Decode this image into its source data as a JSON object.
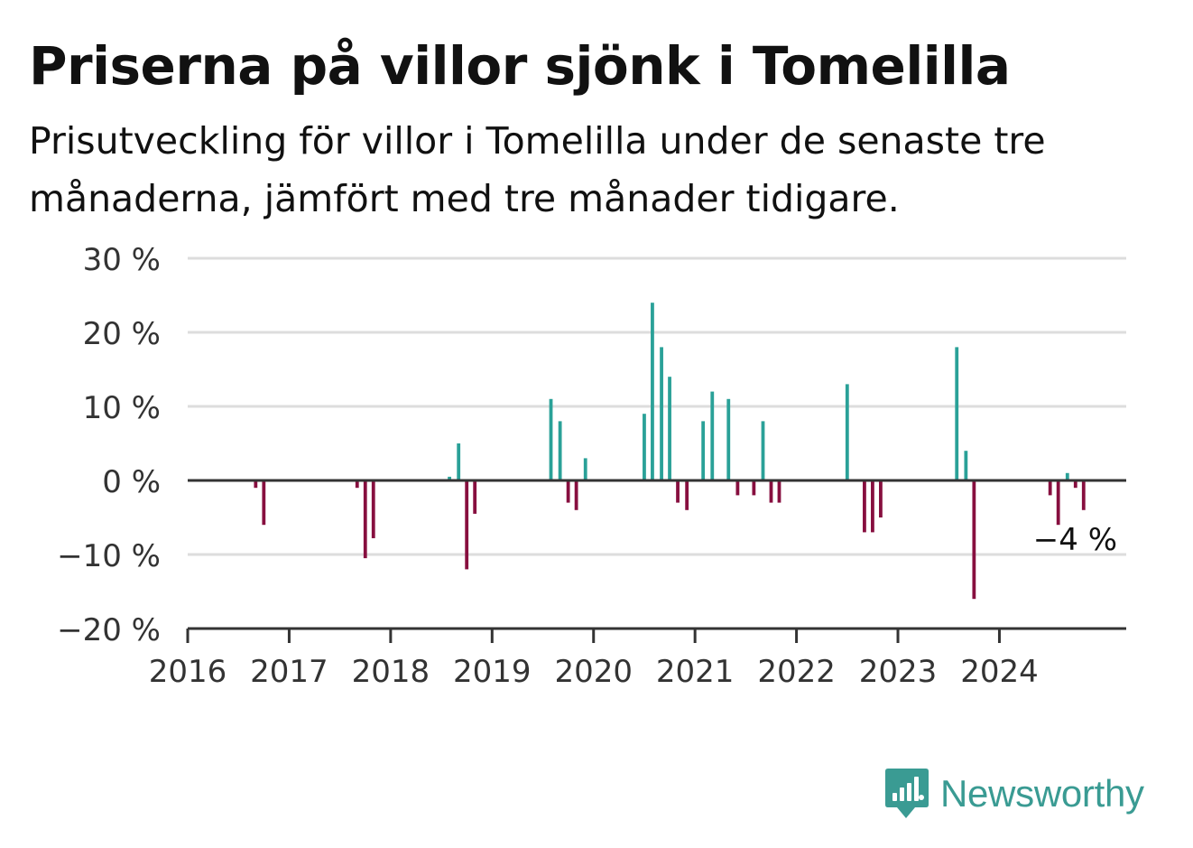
{
  "title": "Priserna på villor sjönk i Tomelilla",
  "subtitle": "Prisutveckling för villor i Tomelilla under de senaste tre månaderna, jämfört med tre månader tidigare.",
  "brand": "Newsworthy",
  "colors": {
    "positive": "#2aa198",
    "negative": "#870f3f",
    "grid": "#dddddd",
    "axis": "#333333"
  },
  "chart_data": {
    "type": "bar",
    "title": "Priserna på villor sjönk i Tomelilla",
    "xlabel": "",
    "ylabel": "",
    "ylim": [
      -20,
      30
    ],
    "xlim": [
      2016,
      2025.25
    ],
    "y_ticks": [
      30,
      20,
      10,
      0,
      -10,
      -20
    ],
    "y_tick_labels": [
      "30 %",
      "20 %",
      "10 %",
      "0 %",
      "−10 %",
      "−20 %"
    ],
    "x_tick_labels": [
      "2016",
      "2017",
      "2018",
      "2019",
      "2020",
      "2021",
      "2022",
      "2023",
      "2024"
    ],
    "grid": true,
    "annotation": "−4 %",
    "bars": [
      {
        "x": 2016.67,
        "y": -1
      },
      {
        "x": 2016.75,
        "y": -6
      },
      {
        "x": 2017.67,
        "y": -1
      },
      {
        "x": 2017.75,
        "y": -10.5
      },
      {
        "x": 2017.83,
        "y": -7.8
      },
      {
        "x": 2018.58,
        "y": 0.5
      },
      {
        "x": 2018.67,
        "y": 5
      },
      {
        "x": 2018.75,
        "y": -12
      },
      {
        "x": 2018.83,
        "y": -4.5
      },
      {
        "x": 2019.58,
        "y": 11
      },
      {
        "x": 2019.67,
        "y": 8
      },
      {
        "x": 2019.75,
        "y": -3
      },
      {
        "x": 2019.83,
        "y": -4
      },
      {
        "x": 2019.92,
        "y": 3
      },
      {
        "x": 2020.5,
        "y": 9
      },
      {
        "x": 2020.58,
        "y": 24
      },
      {
        "x": 2020.67,
        "y": 18
      },
      {
        "x": 2020.75,
        "y": 14
      },
      {
        "x": 2020.83,
        "y": -3
      },
      {
        "x": 2020.92,
        "y": -4
      },
      {
        "x": 2021.08,
        "y": 8
      },
      {
        "x": 2021.17,
        "y": 12
      },
      {
        "x": 2021.33,
        "y": 11
      },
      {
        "x": 2021.42,
        "y": -2
      },
      {
        "x": 2021.58,
        "y": -2
      },
      {
        "x": 2021.67,
        "y": 8
      },
      {
        "x": 2021.75,
        "y": -3
      },
      {
        "x": 2021.83,
        "y": -3
      },
      {
        "x": 2022.5,
        "y": 13
      },
      {
        "x": 2022.67,
        "y": -7
      },
      {
        "x": 2022.75,
        "y": -7
      },
      {
        "x": 2022.83,
        "y": -5
      },
      {
        "x": 2023.58,
        "y": 18
      },
      {
        "x": 2023.67,
        "y": 4
      },
      {
        "x": 2023.75,
        "y": -16
      },
      {
        "x": 2024.5,
        "y": -2
      },
      {
        "x": 2024.58,
        "y": -6
      },
      {
        "x": 2024.67,
        "y": 1
      },
      {
        "x": 2024.75,
        "y": -1
      },
      {
        "x": 2024.83,
        "y": -4
      }
    ]
  }
}
